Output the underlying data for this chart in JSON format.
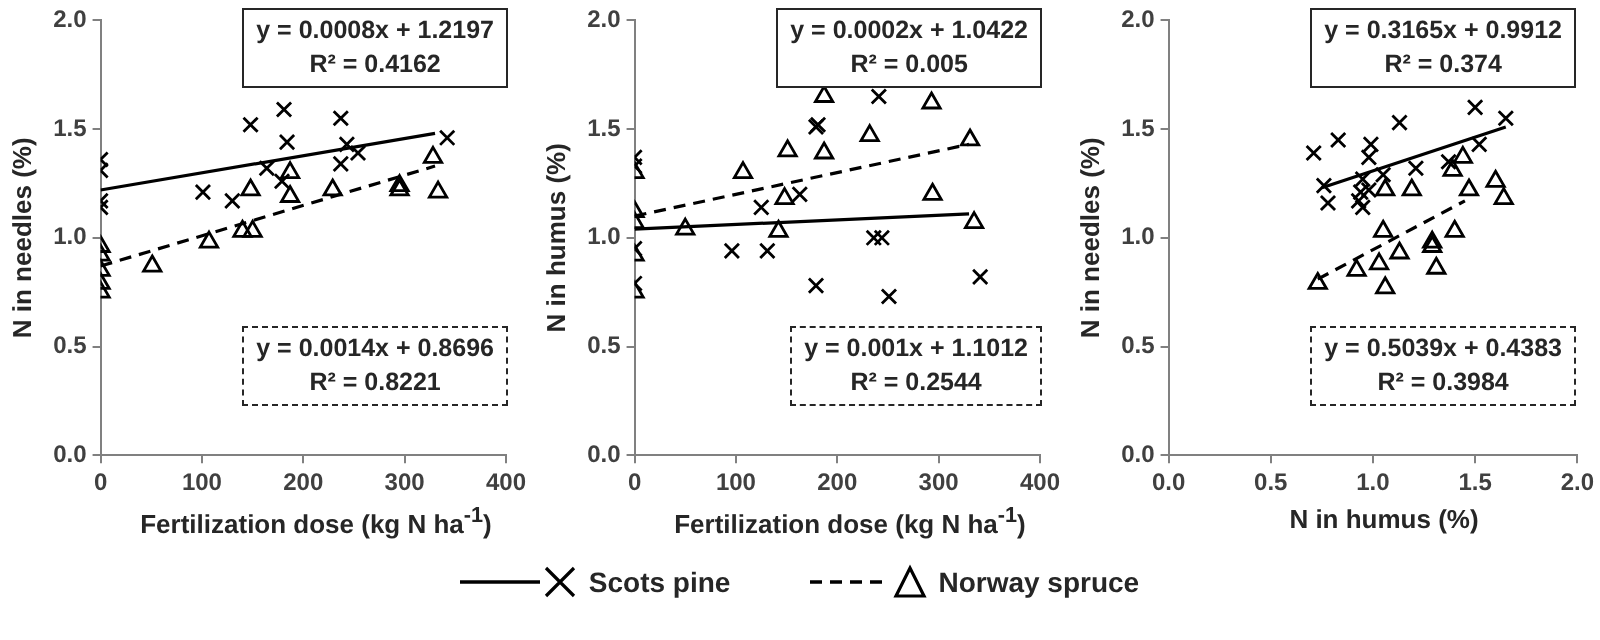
{
  "chart_data": [
    {
      "type": "scatter",
      "xlabel": "Fertilization dose (kg N ha$^{-1}$)",
      "ylabel": "N in needles (%)",
      "xlim": [
        0,
        400
      ],
      "xticks": [
        0,
        100,
        200,
        300,
        400
      ],
      "ylim": [
        0,
        2
      ],
      "yticks": [
        {
          "value": 0,
          "label": "0.0"
        },
        {
          "value": 0.5,
          "label": "0.5"
        },
        {
          "value": 1,
          "label": "1.0"
        },
        {
          "value": 1.5,
          "label": "1.5"
        },
        {
          "value": 2,
          "label": "2.0"
        }
      ],
      "grid": false,
      "legend": "bottom",
      "annotations": [
        "y = 0.0008x + 1.2197\nR² = 0.4162",
        "y = 0.0014x + 0.8696\nR² = 0.8221"
      ],
      "series": [
        {
          "name": "Scots pine",
          "type": "scatter",
          "marker": "cross",
          "color": "#000000",
          "x": [
            0,
            0,
            0,
            0,
            101,
            148,
            130,
            164,
            181,
            184,
            179,
            237,
            237,
            243,
            254,
            342
          ],
          "values": [
            1.36,
            1.31,
            1.17,
            1.14,
            1.21,
            1.52,
            1.17,
            1.32,
            1.59,
            1.44,
            1.26,
            1.55,
            1.34,
            1.43,
            1.39,
            1.46
          ]
        },
        {
          "name": "Norway spruce",
          "type": "scatter",
          "marker": "triangle",
          "color": "#000000",
          "x": [
            0,
            0,
            0,
            0,
            0,
            51,
            107,
            140,
            150,
            148,
            187,
            187,
            229,
            295,
            295,
            328,
            333
          ],
          "values": [
            0.96,
            0.92,
            0.85,
            0.79,
            0.75,
            0.87,
            0.98,
            1.03,
            1.03,
            1.22,
            1.3,
            1.19,
            1.22,
            1.24,
            1.22,
            1.37,
            1.21
          ]
        },
        {
          "type": "line",
          "marker": "none",
          "line_style": "solid",
          "color": "#000000",
          "x": [
            0,
            330
          ],
          "values": [
            1.22,
            1.48
          ]
        },
        {
          "type": "line",
          "marker": "none",
          "line_style": "dashed",
          "color": "#000000",
          "x": [
            0,
            330
          ],
          "values": [
            0.87,
            1.33
          ]
        }
      ]
    },
    {
      "type": "scatter",
      "xlabel": "Fertilization dose (kg N ha$^{-1}$)",
      "ylabel": "N in humus (%)",
      "xlim": [
        0,
        400
      ],
      "xticks": [
        0,
        100,
        200,
        300,
        400
      ],
      "ylim": [
        0,
        2
      ],
      "yticks": [
        {
          "value": 0,
          "label": "0.0"
        },
        {
          "value": 0.5,
          "label": "0.5"
        },
        {
          "value": 1,
          "label": "1.0"
        },
        {
          "value": 1.5,
          "label": "1.5"
        },
        {
          "value": 2,
          "label": "2.0"
        }
      ],
      "grid": false,
      "annotations": [
        "y = 0.0002x + 1.0422\nR² = 0.005",
        "y = 0.001x + 1.1012\nR² = 0.2544"
      ],
      "series": [
        {
          "type": "scatter",
          "marker": "cross",
          "color": "#000000",
          "x": [
            0,
            0,
            0,
            0,
            96,
            125,
            131,
            179,
            181,
            163,
            179,
            241,
            236,
            244,
            251,
            341
          ],
          "values": [
            1.37,
            1.33,
            0.95,
            0.79,
            0.94,
            1.14,
            0.94,
            1.51,
            1.52,
            1.2,
            0.78,
            1.65,
            1.0,
            1.0,
            0.73,
            0.82
          ]
        },
        {
          "type": "scatter",
          "marker": "triangle",
          "color": "#000000",
          "x": [
            0,
            0,
            0,
            0,
            0,
            50,
            107,
            151,
            148,
            142,
            187,
            187,
            232,
            293,
            294,
            331,
            335
          ],
          "values": [
            1.3,
            1.12,
            1.07,
            0.92,
            0.75,
            1.04,
            1.3,
            1.4,
            1.18,
            1.03,
            1.65,
            1.39,
            1.47,
            1.62,
            1.2,
            1.45,
            1.07
          ]
        },
        {
          "type": "line",
          "marker": "none",
          "line_style": "solid",
          "color": "#000000",
          "x": [
            0,
            330
          ],
          "values": [
            1.04,
            1.11
          ]
        },
        {
          "type": "line",
          "marker": "none",
          "line_style": "dashed",
          "color": "#000000",
          "x": [
            0,
            330
          ],
          "values": [
            1.1,
            1.43
          ]
        }
      ]
    },
    {
      "type": "scatter",
      "xlabel": "N in humus (%)",
      "ylabel": "N in needles (%)",
      "xlim": [
        0,
        2
      ],
      "xticks": [
        {
          "value": 0,
          "label": "0.0"
        },
        {
          "value": 0.5,
          "label": "0.5"
        },
        {
          "value": 1,
          "label": "1.0"
        },
        {
          "value": 1.5,
          "label": "1.5"
        },
        {
          "value": 2,
          "label": "2.0"
        }
      ],
      "ylim": [
        0,
        2
      ],
      "yticks": [
        {
          "value": 0,
          "label": "0.0"
        },
        {
          "value": 0.5,
          "label": "0.5"
        },
        {
          "value": 1,
          "label": "1.0"
        },
        {
          "value": 1.5,
          "label": "1.5"
        },
        {
          "value": 2,
          "label": "2.0"
        }
      ],
      "grid": false,
      "annotations": [
        "y = 0.3165x + 0.9912\nR² = 0.374",
        "y = 0.5039x + 0.4383\nR² = 0.3984"
      ],
      "series": [
        {
          "type": "scatter",
          "marker": "cross",
          "color": "#000000",
          "x": [
            0.71,
            0.83,
            0.76,
            0.78,
            0.99,
            0.98,
            0.95,
            0.94,
            0.93,
            0.95,
            0.98,
            1.13,
            1.21,
            1.37,
            1.5,
            1.52,
            1.65,
            1.05
          ],
          "values": [
            1.39,
            1.45,
            1.24,
            1.16,
            1.43,
            1.37,
            1.27,
            1.21,
            1.17,
            1.14,
            1.22,
            1.53,
            1.32,
            1.35,
            1.6,
            1.43,
            1.55,
            1.29
          ]
        },
        {
          "type": "scatter",
          "marker": "triangle",
          "color": "#000000",
          "x": [
            0.73,
            0.92,
            1.05,
            1.03,
            1.06,
            1.13,
            1.06,
            1.19,
            1.29,
            1.29,
            1.31,
            1.4,
            1.39,
            1.44,
            1.47,
            1.6,
            1.64
          ],
          "values": [
            0.79,
            0.85,
            1.03,
            0.88,
            0.77,
            0.93,
            1.22,
            1.22,
            0.98,
            0.96,
            0.86,
            1.03,
            1.31,
            1.37,
            1.22,
            1.26,
            1.18
          ]
        },
        {
          "type": "line",
          "marker": "none",
          "line_style": "solid",
          "color": "#000000",
          "x": [
            0.75,
            1.65
          ],
          "values": [
            1.23,
            1.51
          ]
        },
        {
          "type": "line",
          "marker": "none",
          "line_style": "dashed",
          "color": "#000000",
          "x": [
            0.73,
            1.45
          ],
          "values": [
            0.81,
            1.17
          ]
        }
      ]
    }
  ]
}
